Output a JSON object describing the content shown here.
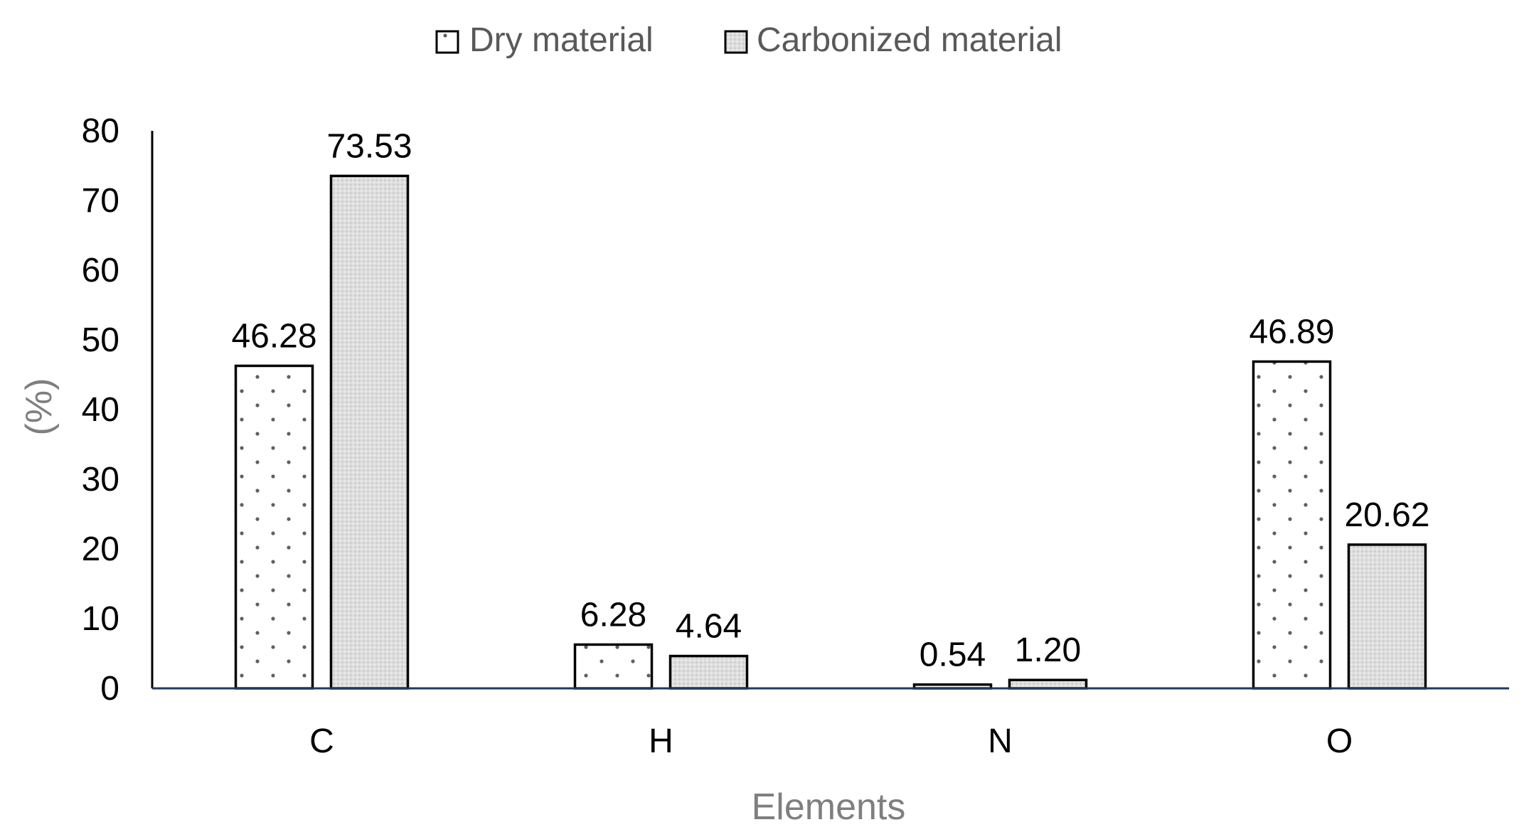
{
  "chart_data": {
    "type": "bar",
    "categories": [
      "C",
      "H",
      "N",
      "O"
    ],
    "series": [
      {
        "name": "Dry material",
        "values": [
          46.28,
          6.28,
          0.54,
          46.89
        ],
        "pattern": "sparse-dots"
      },
      {
        "name": "Carbonized material",
        "values": [
          73.53,
          4.64,
          1.2,
          20.62
        ],
        "pattern": "dense-dots"
      }
    ],
    "data_labels": [
      [
        "46.28",
        "6.28",
        "0.54",
        "46.89"
      ],
      [
        "73.53",
        "4.64",
        "1.20",
        "20.62"
      ]
    ],
    "xlabel": "Elements",
    "ylabel": "(%)",
    "ylim": [
      0,
      80
    ],
    "yticks": [
      0,
      10,
      20,
      30,
      40,
      50,
      60,
      70,
      80
    ],
    "legend_position": "top-center",
    "grid": false,
    "colors": {
      "bar_outline": "#000000",
      "x_axis": "#1f3864",
      "axis_title": "#7f7f7f",
      "legend_text": "#595959",
      "dense_fill": "#e4e4e4"
    }
  }
}
